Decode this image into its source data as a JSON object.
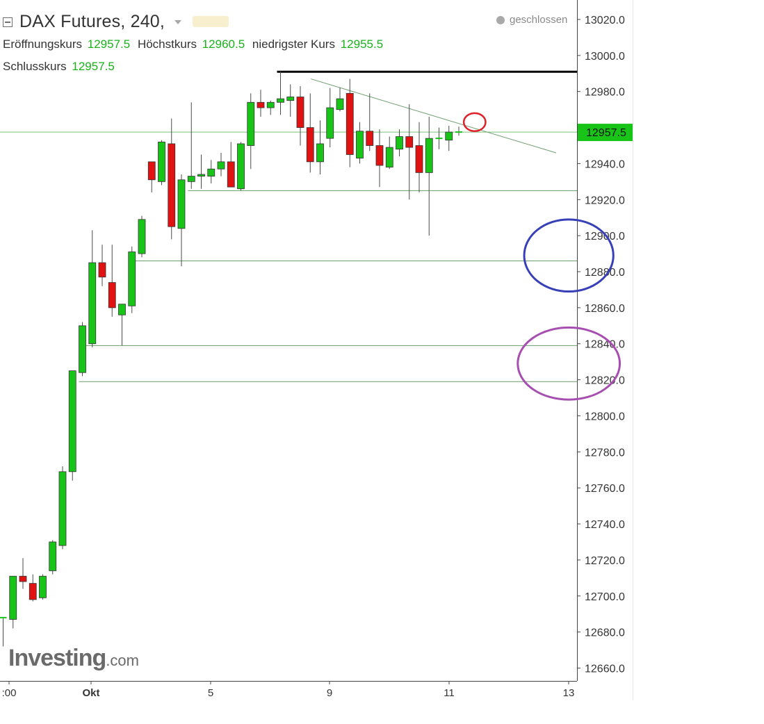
{
  "header": {
    "title": "DAX Futures, 240,",
    "open_label": "Eröffnungskurs",
    "open_value": "12957.5",
    "high_label": "Höchstkurs",
    "high_value": "12960.5",
    "low_label": "niedrigster Kurs",
    "low_value": "12955.5",
    "close_label": "Schlusskurs",
    "close_value": "12957.5",
    "status": "geschlossen"
  },
  "logo": {
    "main": "Investing",
    "suffix": ".com"
  },
  "colors": {
    "up": "#19c419",
    "down": "#e11212",
    "wick": "#4a4a4a",
    "support_line": "#6d9c6d",
    "resistance_line": "#000000",
    "price_tag": "#19c419",
    "circle_red": "#e0202a",
    "circle_blue": "#3840b8",
    "circle_purple": "#a64fb0"
  },
  "chart_data": {
    "type": "candlestick",
    "instrument": "DAX Futures",
    "timeframe": "240",
    "ylim": [
      12652,
      13030
    ],
    "yticks": [
      13020,
      13000,
      12980,
      12960,
      12940,
      12920,
      12900,
      12880,
      12860,
      12840,
      12820,
      12800,
      12780,
      12760,
      12740,
      12720,
      12700,
      12680,
      12660
    ],
    "xticks": [
      ":00",
      "Okt",
      "5",
      "9",
      "11",
      "13"
    ],
    "last_price": "12957.5",
    "candles": [
      {
        "o": 12688,
        "h": 12688,
        "l": 12672,
        "c": 12688
      },
      {
        "o": 12687,
        "h": 12711,
        "l": 12682,
        "c": 12711
      },
      {
        "o": 12711,
        "h": 12721,
        "l": 12704,
        "c": 12708
      },
      {
        "o": 12707,
        "h": 12712,
        "l": 12697,
        "c": 12698
      },
      {
        "o": 12699,
        "h": 12712,
        "l": 12698,
        "c": 12711
      },
      {
        "o": 12714,
        "h": 12731,
        "l": 12712,
        "c": 12730
      },
      {
        "o": 12728,
        "h": 12772,
        "l": 12726,
        "c": 12769
      },
      {
        "o": 12769,
        "h": 12825,
        "l": 12764,
        "c": 12825
      },
      {
        "o": 12824,
        "h": 12852,
        "l": 12822,
        "c": 12850
      },
      {
        "o": 12840,
        "h": 12903,
        "l": 12838,
        "c": 12885
      },
      {
        "o": 12885,
        "h": 12895,
        "l": 12872,
        "c": 12877
      },
      {
        "o": 12874,
        "h": 12895,
        "l": 12855,
        "c": 12860
      },
      {
        "o": 12856,
        "h": 12862,
        "l": 12839,
        "c": 12862
      },
      {
        "o": 12861,
        "h": 12894,
        "l": 12857,
        "c": 12891
      },
      {
        "o": 12890,
        "h": 12911,
        "l": 12888,
        "c": 12909
      },
      {
        "o": 12941,
        "h": 12941,
        "l": 12924,
        "c": 12931
      },
      {
        "o": 12930,
        "h": 12953,
        "l": 12928,
        "c": 12952
      },
      {
        "o": 12951,
        "h": 12965,
        "l": 12898,
        "c": 12905
      },
      {
        "o": 12904,
        "h": 12934,
        "l": 12883,
        "c": 12931
      },
      {
        "o": 12930,
        "h": 12974,
        "l": 12926,
        "c": 12933
      },
      {
        "o": 12933,
        "h": 12945,
        "l": 12926,
        "c": 12934
      },
      {
        "o": 12933,
        "h": 12942,
        "l": 12929,
        "c": 12937
      },
      {
        "o": 12937,
        "h": 12946,
        "l": 12933,
        "c": 12941
      },
      {
        "o": 12941,
        "h": 12952,
        "l": 12927,
        "c": 12927
      },
      {
        "o": 12926,
        "h": 12952,
        "l": 12925,
        "c": 12951
      },
      {
        "o": 12950,
        "h": 12979,
        "l": 12937,
        "c": 12974
      },
      {
        "o": 12974,
        "h": 12981,
        "l": 12966,
        "c": 12971
      },
      {
        "o": 12971,
        "h": 12975,
        "l": 12967,
        "c": 12974
      },
      {
        "o": 12974,
        "h": 12991,
        "l": 12967,
        "c": 12976
      },
      {
        "o": 12975,
        "h": 12984,
        "l": 12966,
        "c": 12977
      },
      {
        "o": 12977,
        "h": 12983,
        "l": 12950,
        "c": 12960
      },
      {
        "o": 12960,
        "h": 12979,
        "l": 12935,
        "c": 12941
      },
      {
        "o": 12941,
        "h": 12964,
        "l": 12934,
        "c": 12951
      },
      {
        "o": 12954,
        "h": 12982,
        "l": 12949,
        "c": 12971
      },
      {
        "o": 12970,
        "h": 12982,
        "l": 12969,
        "c": 12976
      },
      {
        "o": 12979,
        "h": 12987,
        "l": 12938,
        "c": 12945
      },
      {
        "o": 12943,
        "h": 12963,
        "l": 12940,
        "c": 12958
      },
      {
        "o": 12958,
        "h": 12979,
        "l": 12947,
        "c": 12950
      },
      {
        "o": 12950,
        "h": 12959,
        "l": 12927,
        "c": 12939
      },
      {
        "o": 12938,
        "h": 12955,
        "l": 12937,
        "c": 12949
      },
      {
        "o": 12948,
        "h": 12959,
        "l": 12944,
        "c": 12955
      },
      {
        "o": 12955,
        "h": 12973,
        "l": 12920,
        "c": 12949
      },
      {
        "o": 12950,
        "h": 12963,
        "l": 12924,
        "c": 12935
      },
      {
        "o": 12935,
        "h": 12966,
        "l": 12900,
        "c": 12954
      },
      {
        "o": 12954,
        "h": 12960,
        "l": 12948,
        "c": 12954
      },
      {
        "o": 12953,
        "h": 12961,
        "l": 12947,
        "c": 12957.5
      },
      {
        "o": 12957.5,
        "h": 12960.5,
        "l": 12955.5,
        "c": 12957.5
      }
    ],
    "horizontal_lines": [
      {
        "price": 12957.5,
        "from_candle": 0,
        "style": "last-price"
      },
      {
        "price": 12991,
        "from_candle": 28,
        "style": "resistance"
      },
      {
        "price": 12925,
        "from_candle": 19,
        "style": "support"
      },
      {
        "price": 12886,
        "from_candle": 13,
        "style": "support"
      },
      {
        "price": 12839,
        "from_candle": 8,
        "style": "support"
      },
      {
        "price": 12819,
        "from_candle": 8,
        "style": "support"
      }
    ],
    "trendline": {
      "from": {
        "candle": 31,
        "price": 12987
      },
      "to": {
        "candle": 47,
        "price": 12947
      }
    },
    "annotations": [
      {
        "shape": "ellipse",
        "color": "circle_red",
        "candle": 47.6,
        "price": 12963,
        "w_candles": 2.2,
        "h_price": 10
      },
      {
        "shape": "ellipse",
        "color": "circle_blue",
        "candle": 57.1,
        "price": 12889,
        "w_candles": 9.0,
        "h_price": 40
      },
      {
        "shape": "ellipse",
        "color": "circle_purple",
        "candle": 57.1,
        "price": 12829,
        "w_candles": 10.3,
        "h_price": 40
      }
    ]
  }
}
